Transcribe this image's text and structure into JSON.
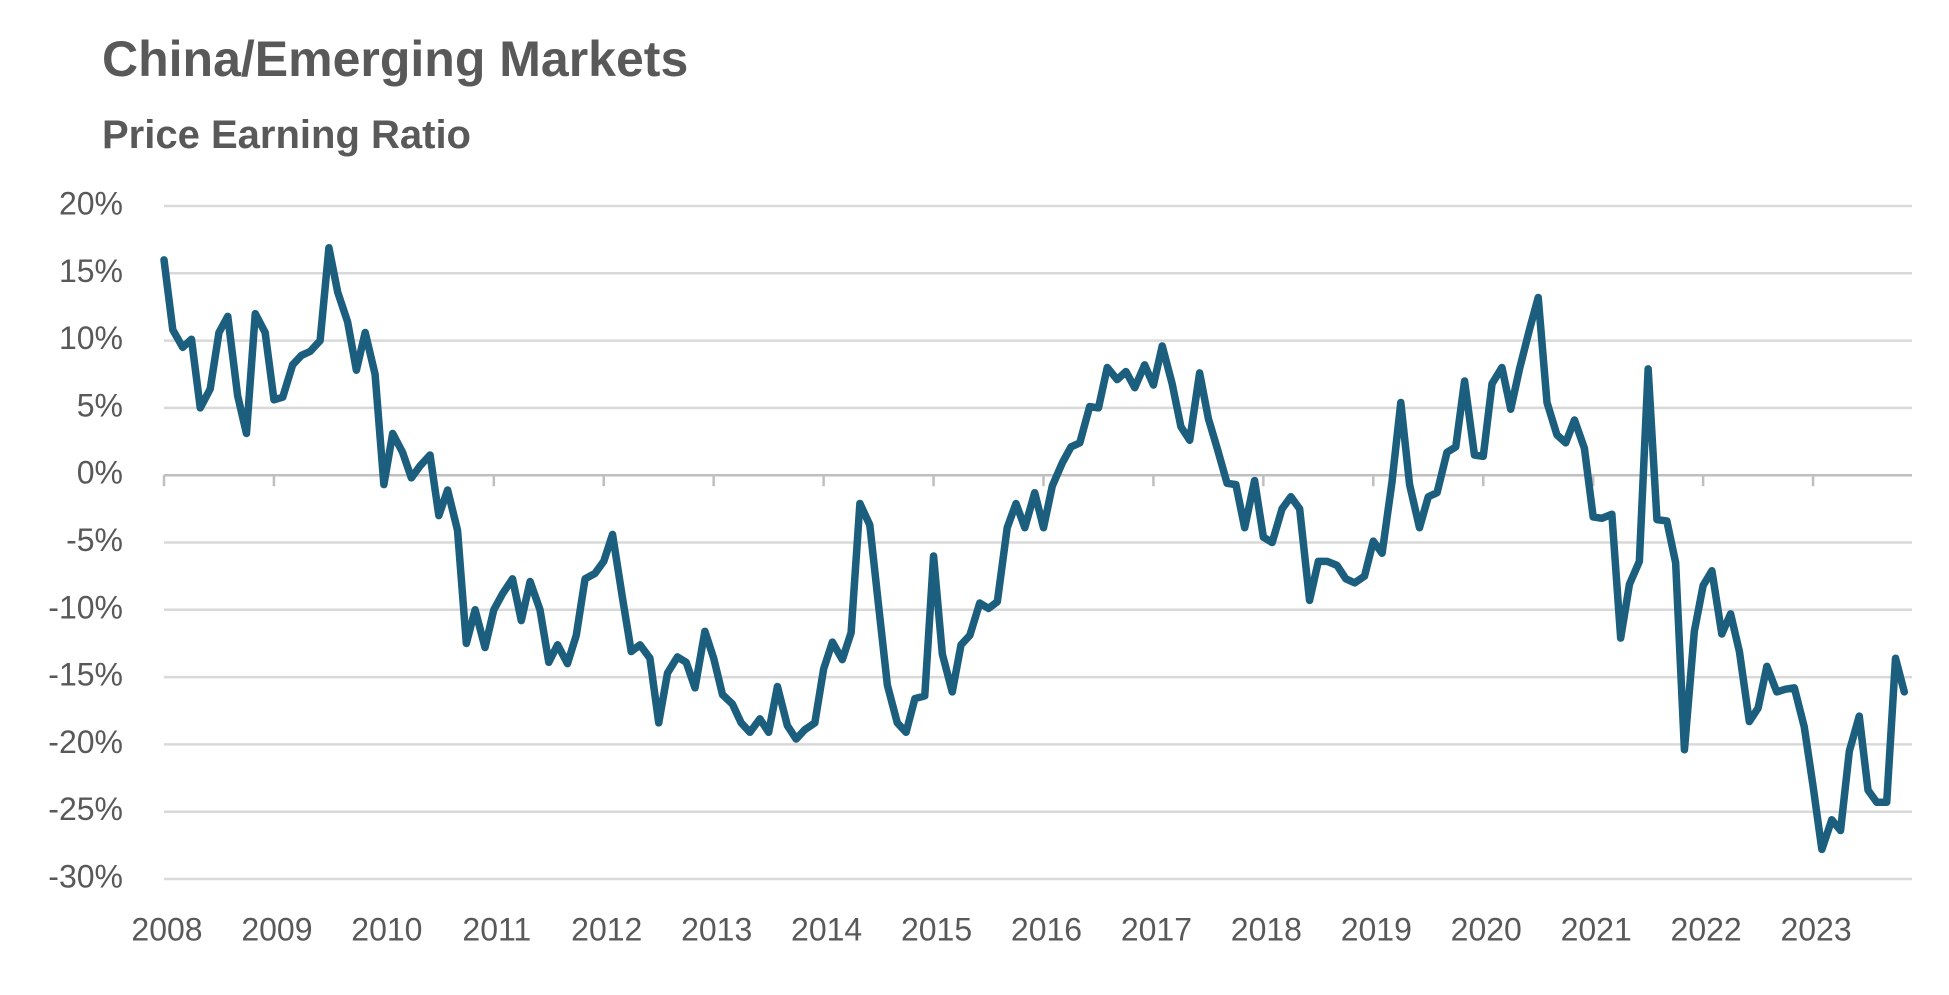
{
  "chart_data": {
    "type": "line",
    "title": "China/Emerging Markets",
    "subtitle": "Price Earning Ratio",
    "x": [
      2008,
      2008.08,
      2008.17,
      2008.25,
      2008.33,
      2008.42,
      2008.5,
      2008.58,
      2008.67,
      2008.75,
      2008.83,
      2008.92,
      2009,
      2009.08,
      2009.17,
      2009.25,
      2009.33,
      2009.42,
      2009.5,
      2009.58,
      2009.67,
      2009.75,
      2009.83,
      2009.92,
      2010,
      2010.08,
      2010.17,
      2010.25,
      2010.33,
      2010.42,
      2010.5,
      2010.58,
      2010.67,
      2010.75,
      2010.83,
      2010.92,
      2011,
      2011.08,
      2011.17,
      2011.25,
      2011.33,
      2011.42,
      2011.5,
      2011.58,
      2011.67,
      2011.75,
      2011.83,
      2011.92,
      2012,
      2012.08,
      2012.17,
      2012.25,
      2012.33,
      2012.42,
      2012.5,
      2012.58,
      2012.67,
      2012.75,
      2012.83,
      2012.92,
      2013,
      2013.08,
      2013.17,
      2013.25,
      2013.33,
      2013.42,
      2013.5,
      2013.58,
      2013.67,
      2013.75,
      2013.83,
      2013.92,
      2014,
      2014.08,
      2014.17,
      2014.25,
      2014.33,
      2014.42,
      2014.5,
      2014.58,
      2014.67,
      2014.75,
      2014.83,
      2014.92,
      2015,
      2015.08,
      2015.17,
      2015.25,
      2015.33,
      2015.42,
      2015.5,
      2015.58,
      2015.67,
      2015.75,
      2015.83,
      2015.92,
      2016,
      2016.08,
      2016.17,
      2016.25,
      2016.33,
      2016.42,
      2016.5,
      2016.58,
      2016.67,
      2016.75,
      2016.83,
      2016.92,
      2017,
      2017.08,
      2017.17,
      2017.25,
      2017.33,
      2017.42,
      2017.5,
      2017.58,
      2017.67,
      2017.75,
      2017.83,
      2017.92,
      2018,
      2018.08,
      2018.17,
      2018.25,
      2018.33,
      2018.42,
      2018.5,
      2018.58,
      2018.67,
      2018.75,
      2018.83,
      2018.92,
      2019,
      2019.08,
      2019.17,
      2019.25,
      2019.33,
      2019.42,
      2019.5,
      2019.58,
      2019.67,
      2019.75,
      2019.83,
      2019.92,
      2020,
      2020.08,
      2020.17,
      2020.25,
      2020.33,
      2020.42,
      2020.5,
      2020.58,
      2020.67,
      2020.75,
      2020.83,
      2020.92,
      2021,
      2021.08,
      2021.17,
      2021.25,
      2021.33,
      2021.42,
      2021.5,
      2021.58,
      2021.67,
      2021.75,
      2021.83,
      2021.92,
      2022,
      2022.08,
      2022.17,
      2022.25,
      2022.33,
      2022.42,
      2022.5,
      2022.58,
      2022.67,
      2022.75,
      2022.83,
      2022.92,
      2023,
      2023.08,
      2023.17,
      2023.25,
      2023.33,
      2023.42,
      2023.5,
      2023.58,
      2023.67,
      2023.75,
      2023.83
    ],
    "series": [
      {
        "color": "#1b5e7d",
        "values": [
          16,
          10.8,
          9.5,
          10.1,
          5,
          6.4,
          10.6,
          11.8,
          5.9,
          3.1,
          12,
          10.6,
          5.6,
          5.8,
          8.2,
          8.9,
          9.2,
          10,
          16.9,
          13.6,
          11.4,
          7.8,
          10.6,
          7.5,
          -0.7,
          3.1,
          1.7,
          -0.2,
          0.7,
          1.5,
          -3,
          -1.1,
          -4.1,
          -12.5,
          -10,
          -12.8,
          -10,
          -8.8,
          -7.7,
          -10.8,
          -7.9,
          -10,
          -13.9,
          -12.6,
          -14,
          -11.9,
          -7.7,
          -7.3,
          -6.4,
          -4.4,
          -9.1,
          -13.1,
          -12.6,
          -13.6,
          -18.4,
          -14.7,
          -13.5,
          -13.9,
          -15.8,
          -11.6,
          -13.6,
          -16.3,
          -17,
          -18.4,
          -19.1,
          -18.1,
          -19.1,
          -15.7,
          -18.6,
          -19.6,
          -18.9,
          -18.4,
          -14.4,
          -12.4,
          -13.7,
          -11.7,
          -2.1,
          -3.7,
          -9.7,
          -15.6,
          -18.4,
          -19.1,
          -16.6,
          -16.4,
          -6,
          -13.3,
          -16.1,
          -12.6,
          -11.9,
          -9.5,
          -9.9,
          -9.4,
          -3.9,
          -2.1,
          -3.9,
          -1.3,
          -3.9,
          -0.8,
          0.9,
          2.1,
          2.4,
          5.1,
          5,
          8,
          7.1,
          7.7,
          6.5,
          8.2,
          6.7,
          9.6,
          6.8,
          3.6,
          2.6,
          7.6,
          4.2,
          2,
          -0.6,
          -0.7,
          -3.9,
          -0.4,
          -4.6,
          -5,
          -2.5,
          -1.6,
          -2.5,
          -9.3,
          -6.4,
          -6.4,
          -6.7,
          -7.7,
          -8,
          -7.5,
          -4.9,
          -5.8,
          -0.5,
          5.4,
          -0.7,
          -3.9,
          -1.6,
          -1.3,
          1.7,
          2.1,
          7,
          1.5,
          1.4,
          6.8,
          8,
          4.9,
          7.9,
          10.8,
          13.2,
          5.4,
          3,
          2.4,
          4.1,
          2,
          -3.1,
          -3.2,
          -2.9,
          -12.1,
          -8.1,
          -6.4,
          7.9,
          -3.3,
          -3.4,
          -6.5,
          -20.4,
          -11.6,
          -8.2,
          -7.1,
          -11.8,
          -10.3,
          -13.1,
          -18.3,
          -17.3,
          -14.2,
          -16.1,
          -15.9,
          -15.8,
          -18.7,
          -23.1,
          -27.8,
          -25.6,
          -26.4,
          -20.5,
          -17.9,
          -23.4,
          -24.3,
          -24.3,
          -13.6,
          -16.1
        ]
      }
    ],
    "xlim": [
      2008,
      2023.9
    ],
    "xticks": [
      2008,
      2009,
      2010,
      2011,
      2012,
      2013,
      2014,
      2015,
      2016,
      2017,
      2018,
      2019,
      2020,
      2021,
      2022,
      2023
    ],
    "ylim": [
      -30,
      20
    ],
    "yticks": [
      {
        "value": -30,
        "label": "-30%"
      },
      {
        "value": -25,
        "label": "-25%"
      },
      {
        "value": -20,
        "label": "-20%"
      },
      {
        "value": -15,
        "label": "-15%"
      },
      {
        "value": -10,
        "label": "-10%"
      },
      {
        "value": -5,
        "label": "-5%"
      },
      {
        "value": 0,
        "label": "0%"
      },
      {
        "value": 5,
        "label": "5%"
      },
      {
        "value": 10,
        "label": "10%"
      },
      {
        "value": 15,
        "label": "15%"
      },
      {
        "value": 20,
        "label": "20%"
      }
    ],
    "grid": true
  }
}
